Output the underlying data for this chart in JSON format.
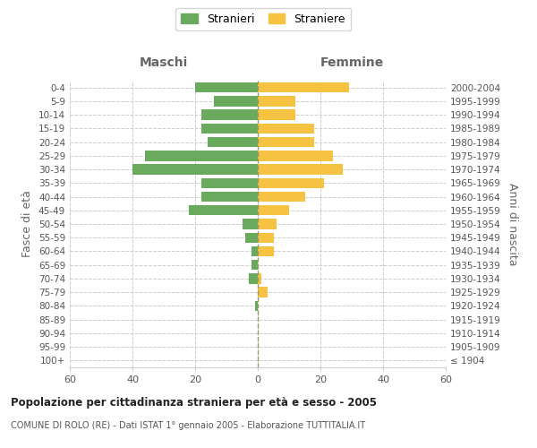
{
  "age_groups": [
    "100+",
    "95-99",
    "90-94",
    "85-89",
    "80-84",
    "75-79",
    "70-74",
    "65-69",
    "60-64",
    "55-59",
    "50-54",
    "45-49",
    "40-44",
    "35-39",
    "30-34",
    "25-29",
    "20-24",
    "15-19",
    "10-14",
    "5-9",
    "0-4"
  ],
  "birth_years": [
    "≤ 1904",
    "1905-1909",
    "1910-1914",
    "1915-1919",
    "1920-1924",
    "1925-1929",
    "1930-1934",
    "1935-1939",
    "1940-1944",
    "1945-1949",
    "1950-1954",
    "1955-1959",
    "1960-1964",
    "1965-1969",
    "1970-1974",
    "1975-1979",
    "1980-1984",
    "1985-1989",
    "1990-1994",
    "1995-1999",
    "2000-2004"
  ],
  "males": [
    0,
    0,
    0,
    0,
    1,
    0,
    3,
    2,
    2,
    4,
    5,
    22,
    18,
    18,
    40,
    36,
    16,
    18,
    18,
    14,
    20
  ],
  "females": [
    0,
    0,
    0,
    0,
    0,
    3,
    1,
    0,
    5,
    5,
    6,
    10,
    15,
    21,
    27,
    24,
    18,
    18,
    12,
    12,
    29
  ],
  "male_color": "#6aaa5e",
  "female_color": "#f5c242",
  "xlim": 60,
  "title": "Popolazione per cittadinanza straniera per età e sesso - 2005",
  "subtitle": "COMUNE DI ROLO (RE) - Dati ISTAT 1° gennaio 2005 - Elaborazione TUTTITALIA.IT",
  "ylabel_left": "Fasce di età",
  "ylabel_right": "Anni di nascita",
  "legend_male": "Stranieri",
  "legend_female": "Straniere",
  "header_left": "Maschi",
  "header_right": "Femmine",
  "bg_color": "#ffffff",
  "grid_color": "#cccccc",
  "bar_height": 0.75,
  "center_line_color": "#999966"
}
